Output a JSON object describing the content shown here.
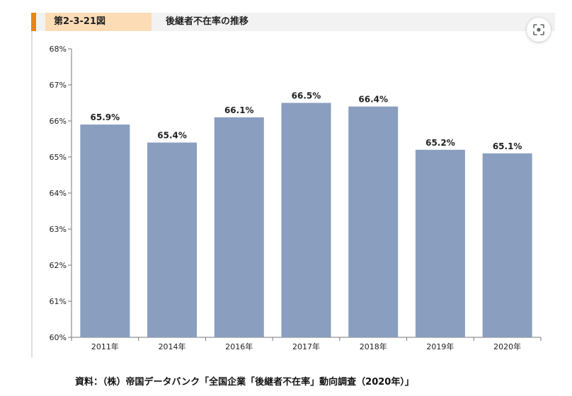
{
  "header": {
    "figure_number": "第2-3-21図",
    "title": "後継者不在率の推移"
  },
  "lens_button": {
    "icon": "lens-scan-icon"
  },
  "source": "資料：（株）帝国データバンク「全国企業「後継者不在率」動向調査（2020年）」",
  "colors": {
    "bar": "#8a9ebf",
    "accent": "#e98514",
    "label_tag": "#fcdcb5",
    "header_bg": "#f2f2f2"
  },
  "chart_data": {
    "type": "bar",
    "categories": [
      "2011年",
      "2014年",
      "2016年",
      "2017年",
      "2018年",
      "2019年",
      "2020年"
    ],
    "values": [
      65.9,
      65.4,
      66.1,
      66.5,
      66.4,
      65.2,
      65.1
    ],
    "value_labels": [
      "65.9%",
      "65.4%",
      "66.1%",
      "66.5%",
      "66.4%",
      "65.2%",
      "65.1%"
    ],
    "y_ticks": [
      {
        "value": 60,
        "label": "60%"
      },
      {
        "value": 61,
        "label": "61%"
      },
      {
        "value": 62,
        "label": "62%"
      },
      {
        "value": 63,
        "label": "63%"
      },
      {
        "value": 64,
        "label": "64%"
      },
      {
        "value": 65,
        "label": "65%"
      },
      {
        "value": 66,
        "label": "66%"
      },
      {
        "value": 67,
        "label": "67%"
      },
      {
        "value": 68,
        "label": "68%"
      }
    ],
    "ylim": [
      60,
      68
    ],
    "title": "",
    "xlabel": "",
    "ylabel": "",
    "grid": false,
    "legend": false
  }
}
